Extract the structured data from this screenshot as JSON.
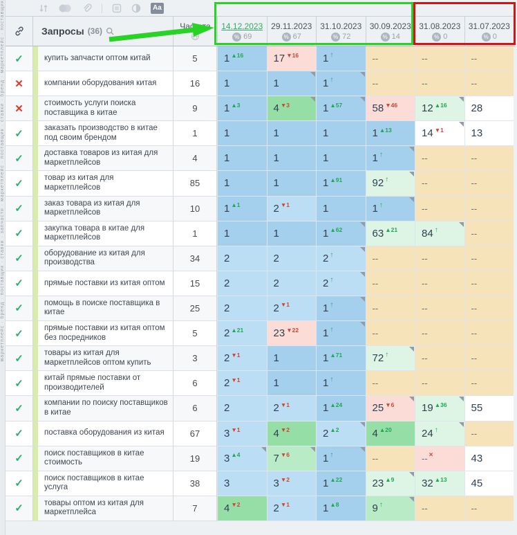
{
  "toolbar": {
    "text_badge": "Aa"
  },
  "vertical_strip": "маркетплейс · бренд · поставщик · ставки · запчасти · маркетплейс · поставщик · ставки · бренд · маркетплейс · поставщик",
  "header": {
    "queries_label": "Запросы",
    "queries_count": "(36)",
    "frequency_label": "Частота",
    "dates": [
      {
        "label": "14.12.2023",
        "count": "69",
        "selected": true
      },
      {
        "label": "29.11.2023",
        "count": "67",
        "selected": false
      },
      {
        "label": "31.10.2023",
        "count": "72",
        "selected": false
      },
      {
        "label": "30.09.2023",
        "count": "14",
        "selected": false
      },
      {
        "label": "31.08.2023",
        "count": "0",
        "selected": false
      },
      {
        "label": "31.07.2023",
        "count": "0",
        "selected": false
      }
    ]
  },
  "palette": {
    "b1": "#a4d0ee",
    "b2": "#bcdef5",
    "g": "#95dfa7",
    "lg": "#b9ecc6",
    "m": "#def4e5",
    "p": "#fcdcd7",
    "w": "#ffffff",
    "t": "#f6e3ba"
  },
  "colors": {
    "annotation_green": "#28d326",
    "annotation_red": "#d41414",
    "delta_up": "#1ea854",
    "delta_down": "#cf4433",
    "selected_date": "#2faf62"
  },
  "rows": [
    {
      "status": "ok",
      "query": "купить запчасти оптом китай",
      "frequency": "5",
      "cells": [
        {
          "v": "1",
          "d": "16",
          "dir": "up",
          "bg": "b1"
        },
        {
          "v": "17",
          "d": "16",
          "dir": "down",
          "bg": "p"
        },
        {
          "v": "1",
          "ent": true,
          "bg": "b1"
        },
        {
          "v": "--",
          "bg": "t"
        },
        {
          "v": "--",
          "bg": "t"
        },
        {
          "v": "--",
          "bg": "t"
        }
      ]
    },
    {
      "status": "fail",
      "query": "компании оборудования китая",
      "frequency": "16",
      "cells": [
        {
          "v": "1",
          "bg": "b1"
        },
        {
          "v": "1",
          "bg": "b1",
          "note": true
        },
        {
          "v": "1",
          "ent": true,
          "bg": "b1",
          "note": true
        },
        {
          "v": "--",
          "bg": "t"
        },
        {
          "v": "--",
          "bg": "t"
        },
        {
          "v": "--",
          "bg": "t"
        }
      ]
    },
    {
      "status": "fail",
      "query": "стоимость услуги поиска поставщика в китае",
      "frequency": "9",
      "cells": [
        {
          "v": "1",
          "d": "3",
          "dir": "up",
          "bg": "b1"
        },
        {
          "v": "4",
          "d": "3",
          "dir": "down",
          "bg": "g",
          "note": true
        },
        {
          "v": "1",
          "d": "57",
          "dir": "up",
          "bg": "b1",
          "note": true
        },
        {
          "v": "58",
          "d": "46",
          "dir": "down",
          "bg": "p"
        },
        {
          "v": "12",
          "d": "16",
          "dir": "up",
          "bg": "m",
          "note": true
        },
        {
          "v": "28",
          "bg": "w"
        }
      ]
    },
    {
      "status": "ok",
      "query": "заказать производство в китае под своим брендом",
      "frequency": "1",
      "cells": [
        {
          "v": "1",
          "bg": "b1"
        },
        {
          "v": "1",
          "bg": "b1"
        },
        {
          "v": "1",
          "bg": "b1"
        },
        {
          "v": "1",
          "d": "13",
          "dir": "up",
          "bg": "b1"
        },
        {
          "v": "14",
          "d": "1",
          "dir": "down",
          "bg": "w",
          "note": true
        },
        {
          "v": "13",
          "bg": "w"
        }
      ]
    },
    {
      "status": "ok",
      "query": "доставка товаров из китая для маркетплейсов",
      "frequency": "4",
      "cells": [
        {
          "v": "1",
          "bg": "b1"
        },
        {
          "v": "1",
          "bg": "b1"
        },
        {
          "v": "1",
          "bg": "b1"
        },
        {
          "v": "1",
          "ent": true,
          "bg": "b1",
          "note": true
        },
        {
          "v": "--",
          "bg": "t"
        },
        {
          "v": "--",
          "bg": "t"
        }
      ]
    },
    {
      "status": "ok",
      "query": "товар из китая для маркетплейсов",
      "frequency": "85",
      "cells": [
        {
          "v": "1",
          "bg": "b1"
        },
        {
          "v": "1",
          "bg": "b1"
        },
        {
          "v": "1",
          "d": "91",
          "dir": "up",
          "bg": "b1"
        },
        {
          "v": "92",
          "ent": true,
          "bg": "m",
          "note": true
        },
        {
          "v": "--",
          "bg": "t"
        },
        {
          "v": "--",
          "bg": "t"
        }
      ]
    },
    {
      "status": "ok",
      "query": "заказ товара из китая для маркетплейсов",
      "frequency": "10",
      "cells": [
        {
          "v": "1",
          "d": "1",
          "dir": "up",
          "bg": "b1"
        },
        {
          "v": "2",
          "d": "1",
          "dir": "down",
          "bg": "b2"
        },
        {
          "v": "1",
          "bg": "b1"
        },
        {
          "v": "1",
          "ent": true,
          "bg": "b1",
          "note": true
        },
        {
          "v": "--",
          "bg": "t"
        },
        {
          "v": "--",
          "bg": "t"
        }
      ]
    },
    {
      "status": "ok",
      "query": "закупка товара в китае для маркетплейсов",
      "frequency": "1",
      "cells": [
        {
          "v": "1",
          "bg": "b1"
        },
        {
          "v": "1",
          "bg": "b1"
        },
        {
          "v": "1",
          "d": "62",
          "dir": "up",
          "bg": "b1",
          "note": true
        },
        {
          "v": "63",
          "d": "21",
          "dir": "up",
          "bg": "m"
        },
        {
          "v": "84",
          "ent": true,
          "bg": "m",
          "note": true
        },
        {
          "v": "--",
          "bg": "t"
        }
      ]
    },
    {
      "status": "ok",
      "query": "оборудование из китая для производства",
      "frequency": "34",
      "cells": [
        {
          "v": "2",
          "bg": "b2"
        },
        {
          "v": "2",
          "bg": "b2"
        },
        {
          "v": "2",
          "ent": true,
          "bg": "b2",
          "note": true
        },
        {
          "v": "--",
          "bg": "t"
        },
        {
          "v": "--",
          "bg": "t"
        },
        {
          "v": "--",
          "bg": "t"
        }
      ]
    },
    {
      "status": "ok",
      "query": "прямые поставки из китая оптом",
      "frequency": "15",
      "cells": [
        {
          "v": "2",
          "bg": "b2"
        },
        {
          "v": "2",
          "bg": "b2"
        },
        {
          "v": "2",
          "ent": true,
          "bg": "b2",
          "note": true
        },
        {
          "v": "--",
          "bg": "t"
        },
        {
          "v": "--",
          "bg": "t"
        },
        {
          "v": "--",
          "bg": "t"
        }
      ]
    },
    {
      "status": "ok",
      "query": "помощь в поиске поставщика в китае",
      "frequency": "25",
      "cells": [
        {
          "v": "2",
          "bg": "b2"
        },
        {
          "v": "2",
          "d": "1",
          "dir": "down",
          "bg": "b2"
        },
        {
          "v": "1",
          "ent": true,
          "bg": "b1",
          "note": true
        },
        {
          "v": "--",
          "bg": "t"
        },
        {
          "v": "--",
          "bg": "t"
        },
        {
          "v": "--",
          "bg": "t"
        }
      ]
    },
    {
      "status": "ok",
      "query": "прямые поставки из китая оптом без посредников",
      "frequency": "5",
      "cells": [
        {
          "v": "2",
          "d": "21",
          "dir": "up",
          "bg": "b2"
        },
        {
          "v": "23",
          "d": "22",
          "dir": "down",
          "bg": "p"
        },
        {
          "v": "1",
          "ent": true,
          "bg": "b1",
          "note": true
        },
        {
          "v": "--",
          "bg": "t"
        },
        {
          "v": "--",
          "bg": "t"
        },
        {
          "v": "--",
          "bg": "t"
        }
      ]
    },
    {
      "status": "ok",
      "query": "товары из китая для маркетплейсов оптом купить",
      "frequency": "3",
      "cells": [
        {
          "v": "2",
          "d": "1",
          "dir": "down",
          "bg": "b2"
        },
        {
          "v": "1",
          "bg": "b1"
        },
        {
          "v": "1",
          "d": "71",
          "dir": "up",
          "bg": "b1"
        },
        {
          "v": "72",
          "ent": true,
          "bg": "m",
          "note": true
        },
        {
          "v": "--",
          "bg": "t"
        },
        {
          "v": "--",
          "bg": "t"
        }
      ]
    },
    {
      "status": "ok",
      "query": "китай прямые поставки от производителей",
      "frequency": "6",
      "cells": [
        {
          "v": "2",
          "d": "1",
          "dir": "down",
          "bg": "b2"
        },
        {
          "v": "1",
          "bg": "b1"
        },
        {
          "v": "1",
          "ent": true,
          "bg": "b1"
        },
        {
          "v": "--",
          "bg": "t"
        },
        {
          "v": "--",
          "bg": "t"
        },
        {
          "v": "--",
          "bg": "t"
        }
      ]
    },
    {
      "status": "ok",
      "query": "компании по поиску поставщиков в китае",
      "frequency": "6",
      "cells": [
        {
          "v": "2",
          "bg": "b2"
        },
        {
          "v": "2",
          "d": "1",
          "dir": "down",
          "bg": "b2"
        },
        {
          "v": "1",
          "d": "24",
          "dir": "up",
          "bg": "b1"
        },
        {
          "v": "25",
          "d": "6",
          "dir": "down",
          "bg": "p",
          "note": true
        },
        {
          "v": "19",
          "d": "36",
          "dir": "up",
          "bg": "m",
          "note": true
        },
        {
          "v": "55",
          "bg": "w"
        }
      ]
    },
    {
      "status": "ok",
      "query": "поставка оборудования из китая",
      "frequency": "67",
      "cells": [
        {
          "v": "3",
          "d": "1",
          "dir": "down",
          "bg": "b2"
        },
        {
          "v": "4",
          "d": "2",
          "dir": "down",
          "bg": "g"
        },
        {
          "v": "2",
          "d": "2",
          "dir": "up",
          "bg": "b2",
          "note": true
        },
        {
          "v": "4",
          "d": "20",
          "dir": "up",
          "bg": "g"
        },
        {
          "v": "24",
          "ent": true,
          "bg": "m",
          "note": true
        },
        {
          "v": "--",
          "bg": "t"
        }
      ]
    },
    {
      "status": "ok",
      "query": "поиск поставщиков в китае стоимость",
      "frequency": "19",
      "cells": [
        {
          "v": "3",
          "d": "4",
          "dir": "up",
          "bg": "b2",
          "note": true
        },
        {
          "v": "7",
          "d": "6",
          "dir": "down",
          "bg": "lg",
          "note": true
        },
        {
          "v": "1",
          "ent": true,
          "bg": "b1",
          "note": true
        },
        {
          "v": "--",
          "bg": "t"
        },
        {
          "v": "--",
          "x": true,
          "bg": "p"
        },
        {
          "v": "43",
          "bg": "w"
        }
      ]
    },
    {
      "status": "ok",
      "query": "поиск поставщиков в китае услуга",
      "frequency": "38",
      "cells": [
        {
          "v": "3",
          "bg": "b2"
        },
        {
          "v": "3",
          "d": "2",
          "dir": "down",
          "bg": "b2"
        },
        {
          "v": "1",
          "d": "22",
          "dir": "up",
          "bg": "b1"
        },
        {
          "v": "23",
          "d": "9",
          "dir": "up",
          "bg": "m",
          "note": true
        },
        {
          "v": "32",
          "d": "13",
          "dir": "up",
          "bg": "m"
        },
        {
          "v": "45",
          "bg": "w"
        }
      ]
    },
    {
      "status": "ok",
      "query": "товары оптом из китая для маркетплейса",
      "frequency": "7",
      "cells": [
        {
          "v": "4",
          "d": "2",
          "dir": "down",
          "bg": "g"
        },
        {
          "v": "2",
          "d": "1",
          "dir": "down",
          "bg": "b2"
        },
        {
          "v": "1",
          "d": "8",
          "dir": "up",
          "bg": "b1"
        },
        {
          "v": "9",
          "ent": true,
          "bg": "lg",
          "note": true
        },
        {
          "v": "--",
          "bg": "t"
        },
        {
          "v": "--",
          "bg": "t"
        }
      ]
    }
  ]
}
